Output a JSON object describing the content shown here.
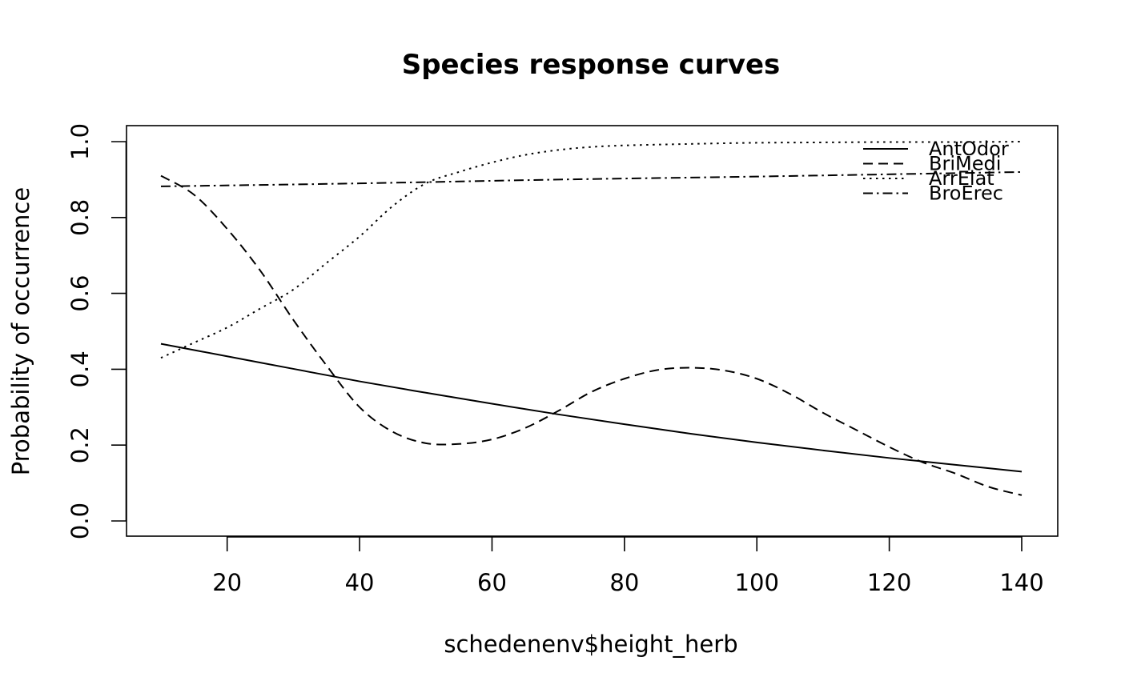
{
  "chart_data": {
    "type": "line",
    "title": "Species response curves",
    "xlabel": "schedenenv$height_herb",
    "ylabel": "Probability of occurrence",
    "xlim": [
      5,
      145
    ],
    "ylim": [
      0.0,
      1.0
    ],
    "x_ticks": [
      20,
      40,
      60,
      80,
      100,
      120,
      140
    ],
    "x_tick_labels": [
      "20",
      "40",
      "60",
      "80",
      "100",
      "120",
      "140"
    ],
    "y_ticks": [
      0.0,
      0.2,
      0.4,
      0.6,
      0.8,
      1.0
    ],
    "y_tick_labels": [
      "0.0",
      "0.2",
      "0.4",
      "0.6",
      "0.8",
      "1.0"
    ],
    "grid": false,
    "legend_position": "top-right",
    "series": [
      {
        "name": "AntOdor",
        "line_style": "solid",
        "color": "#000000",
        "x": [
          10,
          20,
          30,
          40,
          50,
          60,
          70,
          80,
          90,
          100,
          110,
          120,
          130,
          140
        ],
        "y": [
          0.467,
          0.434,
          0.401,
          0.368,
          0.338,
          0.309,
          0.281,
          0.255,
          0.23,
          0.207,
          0.186,
          0.166,
          0.148,
          0.13
        ]
      },
      {
        "name": "BriMedi",
        "line_style": "dashed",
        "color": "#000000",
        "x": [
          10,
          15,
          20,
          25,
          30,
          35,
          40,
          45,
          50,
          55,
          60,
          65,
          70,
          75,
          80,
          85,
          90,
          95,
          100,
          105,
          110,
          115,
          120,
          125,
          130,
          135,
          140
        ],
        "y": [
          0.91,
          0.86,
          0.77,
          0.66,
          0.53,
          0.41,
          0.3,
          0.235,
          0.205,
          0.203,
          0.215,
          0.245,
          0.29,
          0.34,
          0.375,
          0.398,
          0.404,
          0.397,
          0.375,
          0.335,
          0.285,
          0.24,
          0.195,
          0.155,
          0.125,
          0.09,
          0.068
        ]
      },
      {
        "name": "ArrElat",
        "line_style": "dotted",
        "color": "#000000",
        "x": [
          10,
          15,
          20,
          25,
          30,
          35,
          40,
          45,
          50,
          55,
          60,
          65,
          70,
          75,
          80,
          90,
          100,
          110,
          120,
          130,
          140
        ],
        "y": [
          0.43,
          0.47,
          0.51,
          0.56,
          0.61,
          0.68,
          0.75,
          0.83,
          0.89,
          0.92,
          0.945,
          0.965,
          0.978,
          0.986,
          0.99,
          0.994,
          0.997,
          0.998,
          0.999,
          0.999,
          1.0
        ]
      },
      {
        "name": "BroErec",
        "line_style": "dashdot",
        "color": "#000000",
        "x": [
          10,
          40,
          70,
          100,
          140
        ],
        "y": [
          0.882,
          0.89,
          0.9,
          0.908,
          0.92
        ]
      }
    ]
  }
}
